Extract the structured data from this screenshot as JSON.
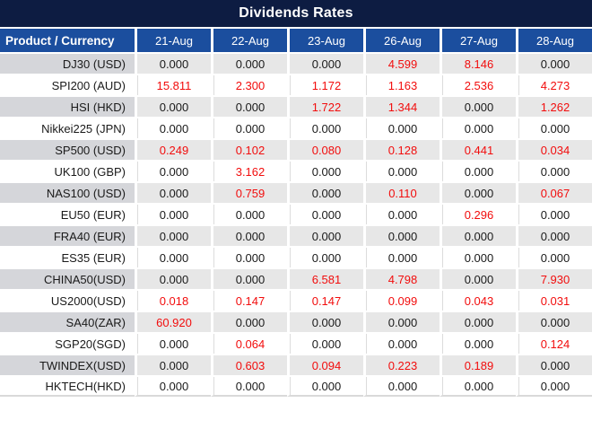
{
  "title": "Dividends Rates",
  "colors": {
    "title_bar_bg": "#0d1c42",
    "header_bg": "#1b4e9e",
    "header_text": "#ffffff",
    "row_label_gray": "#d5d6da",
    "row_cell_gray": "#e7e7e7",
    "row_white": "#ffffff",
    "value_text": "#1a1a1a",
    "nonzero_value": "#f20d0d"
  },
  "chart_data": {
    "type": "table",
    "title": "Dividends Rates",
    "columns": [
      "Product / Currency",
      "21-Aug",
      "22-Aug",
      "23-Aug",
      "26-Aug",
      "27-Aug",
      "28-Aug"
    ],
    "rows": [
      [
        "DJ30 (USD)",
        "0.000",
        "0.000",
        "0.000",
        "4.599",
        "8.146",
        "0.000"
      ],
      [
        "SPI200 (AUD)",
        "15.811",
        "2.300",
        "1.172",
        "1.163",
        "2.536",
        "4.273"
      ],
      [
        "HSI (HKD)",
        "0.000",
        "0.000",
        "1.722",
        "1.344",
        "0.000",
        "1.262"
      ],
      [
        "Nikkei225 (JPN)",
        "0.000",
        "0.000",
        "0.000",
        "0.000",
        "0.000",
        "0.000"
      ],
      [
        "SP500 (USD)",
        "0.249",
        "0.102",
        "0.080",
        "0.128",
        "0.441",
        "0.034"
      ],
      [
        "UK100 (GBP)",
        "0.000",
        "3.162",
        "0.000",
        "0.000",
        "0.000",
        "0.000"
      ],
      [
        "NAS100 (USD)",
        "0.000",
        "0.759",
        "0.000",
        "0.110",
        "0.000",
        "0.067"
      ],
      [
        "EU50 (EUR)",
        "0.000",
        "0.000",
        "0.000",
        "0.000",
        "0.296",
        "0.000"
      ],
      [
        "FRA40 (EUR)",
        "0.000",
        "0.000",
        "0.000",
        "0.000",
        "0.000",
        "0.000"
      ],
      [
        "ES35 (EUR)",
        "0.000",
        "0.000",
        "0.000",
        "0.000",
        "0.000",
        "0.000"
      ],
      [
        "CHINA50(USD)",
        "0.000",
        "0.000",
        "6.581",
        "4.798",
        "0.000",
        "7.930"
      ],
      [
        "US2000(USD)",
        "0.018",
        "0.147",
        "0.147",
        "0.099",
        "0.043",
        "0.031"
      ],
      [
        "SA40(ZAR)",
        "60.920",
        "0.000",
        "0.000",
        "0.000",
        "0.000",
        "0.000"
      ],
      [
        "SGP20(SGD)",
        "0.000",
        "0.064",
        "0.000",
        "0.000",
        "0.000",
        "0.124"
      ],
      [
        "TWINDEX(USD)",
        "0.000",
        "0.603",
        "0.094",
        "0.223",
        "0.189",
        "0.000"
      ],
      [
        "HKTECH(HKD)",
        "0.000",
        "0.000",
        "0.000",
        "0.000",
        "0.000",
        "0.000"
      ]
    ],
    "zero_value": "0.000",
    "value_style_rule": "non-zero values rendered in red",
    "layout": {
      "label_column_align": "right",
      "value_columns_align": "center",
      "alternating_rows": "gray/white starting gray"
    }
  }
}
